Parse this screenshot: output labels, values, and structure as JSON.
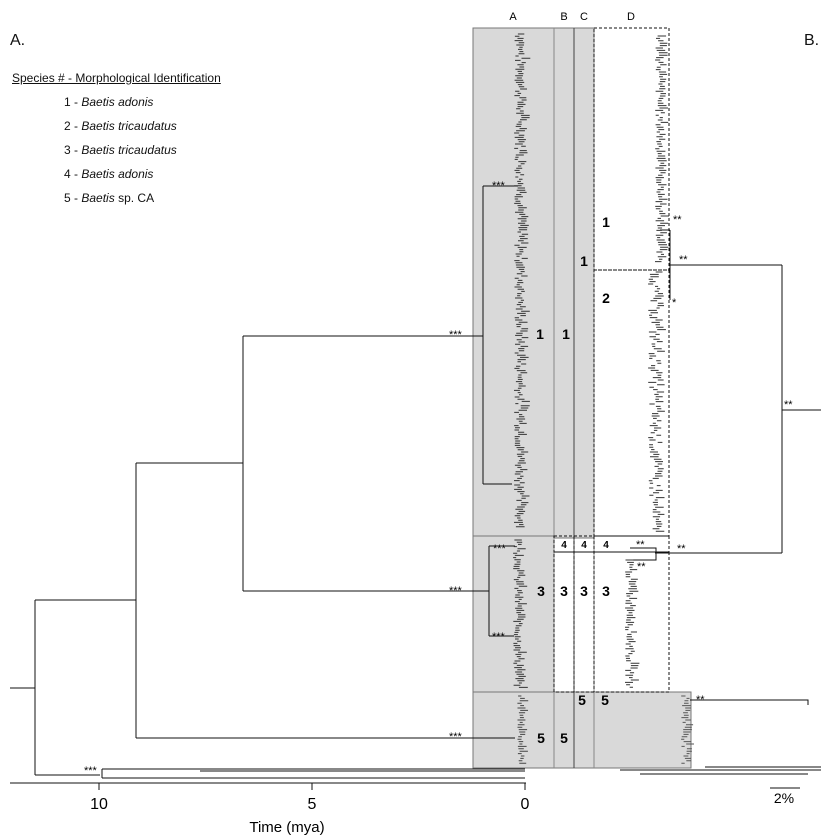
{
  "panels": {
    "a_label": "A.",
    "b_label": "B."
  },
  "legend": {
    "title": "Species # - Morphological Identification",
    "items": [
      {
        "num": "1",
        "genus": "Baetis",
        "epithet": "adonis"
      },
      {
        "num": "2",
        "genus": "Baetis",
        "epithet": "tricaudatus"
      },
      {
        "num": "3",
        "genus": "Baetis",
        "epithet": "tricaudatus"
      },
      {
        "num": "4",
        "genus": "Baetis",
        "epithet": "adonis"
      },
      {
        "num": "5",
        "genus": "Baetis",
        "epithet": "sp. CA"
      }
    ]
  },
  "columns": [
    "A",
    "B",
    "C",
    "D"
  ],
  "species_numbers": [
    "1",
    "2",
    "3",
    "4",
    "5"
  ],
  "support": {
    "three": "***",
    "two": "**",
    "one": "*"
  },
  "time_axis": {
    "label": "Time (mya)",
    "ticks": [
      "10",
      "5",
      "0"
    ],
    "range": [
      12,
      0
    ]
  },
  "scale_bar": "2%",
  "colors": {
    "shade": "#d9d9d9",
    "line": "#111111",
    "box_border": "#777777"
  }
}
